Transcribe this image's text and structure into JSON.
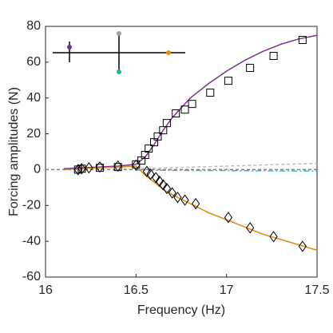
{
  "chart_data": {
    "type": "line",
    "xlabel": "Frequency (Hz)",
    "ylabel": "Forcing amplitudes (N)",
    "xlim": [
      16,
      17.5
    ],
    "xticks": [
      16,
      16.5,
      17,
      17.5
    ],
    "ylim": [
      -60,
      80
    ],
    "yticks": [
      -60,
      -40,
      -20,
      0,
      20,
      40,
      60,
      80
    ],
    "series": [
      {
        "color": "#7e2f8e",
        "style": "solid",
        "x": [
          16.1,
          16.2,
          16.3,
          16.4,
          16.5,
          16.55,
          16.6,
          16.65,
          16.7,
          16.8,
          16.9,
          17,
          17.1,
          17.2,
          17.3,
          17.4,
          17.5
        ],
        "values": [
          0.5,
          1,
          1.5,
          2,
          3,
          7,
          14,
          22,
          29,
          40,
          48,
          55,
          61,
          66,
          70,
          73,
          75
        ]
      },
      {
        "color": "#e08b10",
        "style": "solid",
        "x": [
          16.1,
          16.2,
          16.3,
          16.4,
          16.5,
          16.55,
          16.6,
          16.65,
          16.7,
          16.8,
          16.9,
          17,
          17.1,
          17.2,
          17.3,
          17.4,
          17.5
        ],
        "values": [
          0,
          0.5,
          1,
          1.5,
          2,
          -3,
          -7,
          -11,
          -14,
          -19,
          -24,
          -28,
          -32,
          -36,
          -39,
          -42,
          -45
        ]
      },
      {
        "color": "#bdbdbd",
        "style": "dash",
        "x": [
          16.5,
          17.5
        ],
        "values": [
          0.5,
          3.5
        ]
      },
      {
        "color": "#38b6d6",
        "style": "dashdot",
        "x": [
          16.5,
          17.5
        ],
        "values": [
          -0.3,
          -0.8
        ]
      },
      {
        "color": "#808080",
        "style": "dash",
        "x": [
          16,
          17.5
        ],
        "values": [
          0,
          0
        ]
      },
      {
        "color": "#000000",
        "style": "none",
        "marker": "square",
        "x": [
          16.18,
          16.2,
          16.3,
          16.4,
          16.5,
          16.53,
          16.55,
          16.57,
          16.6,
          16.62,
          16.65,
          16.67,
          16.72,
          16.77,
          16.81,
          16.91,
          17.01,
          17.13,
          17.26,
          17.42
        ],
        "values": [
          0,
          0.5,
          1,
          1.5,
          2.9,
          5.1,
          8.2,
          11.8,
          15.3,
          18.5,
          22,
          26,
          31.4,
          33.5,
          36.7,
          43,
          49.6,
          56.8,
          63.5,
          72.4
        ]
      },
      {
        "color": "#000000",
        "style": "none",
        "marker": "diamond",
        "x": [
          16.18,
          16.2,
          16.24,
          16.3,
          16.4,
          16.5,
          16.56,
          16.58,
          16.61,
          16.63,
          16.65,
          16.67,
          16.7,
          16.73,
          16.77,
          16.83,
          17.01,
          17.13,
          17.26,
          17.42
        ],
        "values": [
          0,
          0.5,
          1,
          1.5,
          2,
          2.5,
          -1,
          -2.5,
          -4.5,
          -6.5,
          -8.5,
          -10.5,
          -13,
          -15.5,
          -17,
          -19,
          -26.7,
          -32.5,
          -37.4,
          -42.8
        ]
      }
    ]
  }
}
